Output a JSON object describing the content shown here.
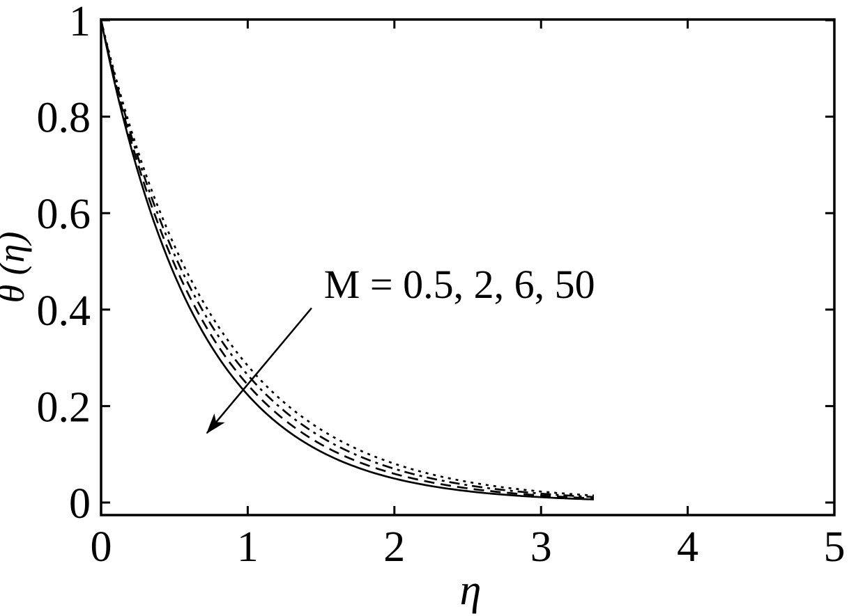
{
  "figure": {
    "background": "#ffffff",
    "ink_color": "#000000"
  },
  "chart_data": {
    "type": "line",
    "title": "",
    "xlabel": "η",
    "ylabel": "θ (η)",
    "xlim": [
      0,
      5
    ],
    "ylim": [
      -0.026,
      1.0015
    ],
    "grid": false,
    "legend_position": "none (inline text annotation with arrow)",
    "x_ticks": [
      0,
      1,
      2,
      3,
      4,
      5
    ],
    "x_tick_labels": [
      "0",
      "1",
      "2",
      "3",
      "4",
      "5"
    ],
    "y_ticks": [
      0,
      0.2,
      0.4,
      0.6,
      0.8,
      1
    ],
    "y_tick_labels": [
      "0",
      "0.2",
      "0.4",
      "0.6",
      "0.8",
      "1"
    ],
    "curve_x_start": 0,
    "curve_x_end": 3.36,
    "series": [
      {
        "name": "M = 0.5",
        "M": 0.5,
        "line_style": "dotted",
        "decay_k": 1.26,
        "x": [
          0,
          0.25,
          0.5,
          0.75,
          1,
          1.25,
          1.5,
          1.75,
          2,
          2.25,
          2.5,
          2.75,
          3
        ],
        "y": [
          1,
          0.73,
          0.533,
          0.389,
          0.284,
          0.207,
          0.151,
          0.11,
          0.081,
          0.059,
          0.043,
          0.031,
          0.023
        ]
      },
      {
        "name": "M = 2",
        "M": 2,
        "line_style": "dashdot",
        "decay_k": 1.33,
        "x": [
          0,
          0.25,
          0.5,
          0.75,
          1,
          1.25,
          1.5,
          1.75,
          2,
          2.25,
          2.5,
          2.75,
          3
        ],
        "y": [
          1,
          0.717,
          0.514,
          0.369,
          0.264,
          0.19,
          0.136,
          0.097,
          0.07,
          0.05,
          0.036,
          0.026,
          0.019
        ]
      },
      {
        "name": "M = 6",
        "M": 6,
        "line_style": "dashed",
        "decay_k": 1.41,
        "x": [
          0,
          0.25,
          0.5,
          0.75,
          1,
          1.25,
          1.5,
          1.75,
          2,
          2.25,
          2.5,
          2.75,
          3
        ],
        "y": [
          1,
          0.703,
          0.494,
          0.347,
          0.244,
          0.172,
          0.121,
          0.085,
          0.06,
          0.042,
          0.029,
          0.021,
          0.015
        ]
      },
      {
        "name": "M = 50",
        "M": 50,
        "line_style": "solid",
        "decay_k": 1.5,
        "x": [
          0,
          0.25,
          0.5,
          0.75,
          1,
          1.25,
          1.5,
          1.75,
          2,
          2.25,
          2.5,
          2.75,
          3
        ],
        "y": [
          1,
          0.687,
          0.472,
          0.325,
          0.223,
          0.153,
          0.105,
          0.072,
          0.05,
          0.034,
          0.024,
          0.016,
          0.011
        ]
      }
    ],
    "annotation": {
      "text": "M = 0.5, 2, 6, 50",
      "text_anchor_data_xy": [
        1.52,
        0.424
      ],
      "arrow_from_data_xy": [
        1.435,
        0.403
      ],
      "arrow_to_data_xy": [
        0.722,
        0.144
      ]
    }
  }
}
